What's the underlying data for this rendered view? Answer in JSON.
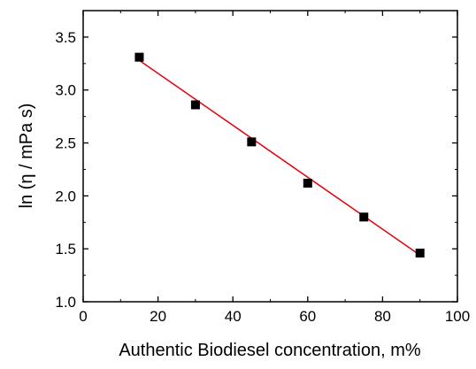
{
  "chart_data": {
    "type": "scatter",
    "xlabel": "Authentic Biodiesel concentration, m%",
    "ylabel": "ln (η / mPa s)",
    "xlim": [
      0,
      100
    ],
    "ylim": [
      1.0,
      3.75
    ],
    "x_ticks": [
      "0",
      "20",
      "40",
      "60",
      "80",
      "100"
    ],
    "y_ticks": [
      "1.0",
      "1.5",
      "2.0",
      "2.5",
      "3.0",
      "3.5"
    ],
    "x_tick_values": [
      0,
      20,
      40,
      60,
      80,
      100
    ],
    "y_tick_values": [
      1.0,
      1.5,
      2.0,
      2.5,
      3.0,
      3.5
    ],
    "grid": false,
    "series": [
      {
        "type": "scatter",
        "marker": "square",
        "color": "#000000",
        "x": [
          15,
          30,
          45,
          60,
          75,
          90
        ],
        "y": [
          3.31,
          2.86,
          2.51,
          2.12,
          1.8,
          1.46
        ]
      },
      {
        "type": "line",
        "color": "#e8000b",
        "x": [
          15,
          90
        ],
        "y": [
          3.28,
          1.44
        ]
      }
    ]
  }
}
